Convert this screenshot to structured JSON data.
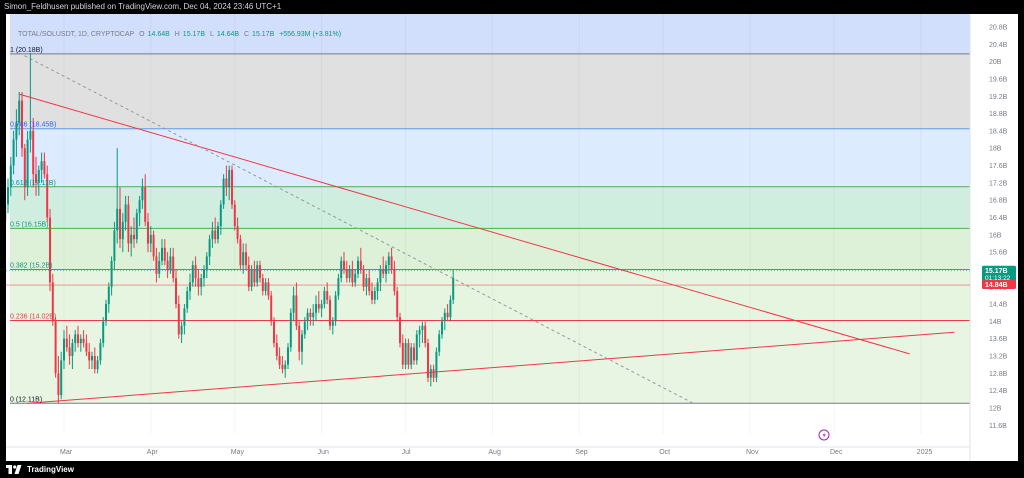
{
  "publish_line": "Simon_Feldhusen published on TradingView.com, Dec 04, 2024 23:46 UTC+1",
  "legend": {
    "symbol": "TOTAL/SOLUSDT, 1D, CRYPTOCAP",
    "o_label": "O",
    "o_value": "14.64B",
    "h_label": "H",
    "h_value": "15.17B",
    "l_label": "L",
    "l_value": "14.64B",
    "c_label": "C",
    "c_value": "15.17B",
    "change": "+556.93M (+3.81%)"
  },
  "branding": "TradingView",
  "colors": {
    "up": "#089981",
    "down": "#f23645",
    "bg": "#ffffff",
    "axis_text": "#787b86"
  },
  "chart_data": {
    "type": "candlestick",
    "y_axis_ticks": [
      "20.8B",
      "20.4B",
      "20B",
      "19.6B",
      "19.2B",
      "18.8B",
      "18.4B",
      "18B",
      "17.6B",
      "17.2B",
      "16.8B",
      "16.4B",
      "16B",
      "15.6B",
      "15.2B",
      "14.8B",
      "14.4B",
      "14B",
      "13.6B",
      "13.2B",
      "12.8B",
      "12.4B",
      "12B",
      "11.6B"
    ],
    "y_tick_values": [
      20.8,
      20.4,
      20,
      19.6,
      19.2,
      18.8,
      18.4,
      18,
      17.6,
      17.2,
      16.8,
      16.4,
      16,
      15.6,
      15.2,
      14.8,
      14.4,
      14,
      13.6,
      13.2,
      12.8,
      12.4,
      12,
      11.6
    ],
    "x_axis_ticks": [
      "Mar",
      "Apr",
      "May",
      "Jun",
      "Jul",
      "Aug",
      "Sep",
      "Oct",
      "Nov",
      "Dec",
      "2025"
    ],
    "x_tick_days": [
      0,
      31,
      61,
      92,
      122,
      153,
      184,
      214,
      245,
      275,
      306
    ],
    "ylim": [
      11.4,
      21.1
    ],
    "price_labels": [
      {
        "text": "15.17B",
        "sub": "01:13:22",
        "value": 15.17,
        "color": "#089981"
      },
      {
        "text": "14.84B",
        "value": 14.84,
        "color": "#f23645"
      }
    ],
    "fib_levels": [
      {
        "label": "1 (20.18B)",
        "value": 20.18,
        "line": "#787b86",
        "fill": "#e0e0e0",
        "text_color": "#131722"
      },
      {
        "label": "0.786 (18.45B)",
        "value": 18.45,
        "line": "#5b9cf6",
        "fill": "#dcebfd",
        "text_color": "#2962ff"
      },
      {
        "label": "0.618 (17.11B)",
        "value": 17.11,
        "line": "#4caf50",
        "fill": "#cfeee0",
        "text_color": "#089981"
      },
      {
        "label": "0.5 (16.15B)",
        "value": 16.15,
        "line": "#4caf50",
        "fill": "#ddf0d8",
        "text_color": "#089981"
      },
      {
        "label": "0.382 (15.2B)",
        "value": 15.2,
        "line": "#26a69a",
        "fill": "#e6f5e0",
        "text_color": "#089981"
      },
      {
        "label": "0.236 (14.02B)",
        "value": 14.02,
        "line": "#f23645",
        "fill": "#e8f5e2",
        "text_color": "#f23645"
      },
      {
        "label": "0 (12.11B)",
        "value": 12.11,
        "line": "#787b86",
        "fill": "#f9cfd1",
        "text_color": "#131722"
      }
    ],
    "fib_top_extension": {
      "value": 21.1,
      "fill": "#d1dffd"
    },
    "trendlines": [
      {
        "from_day": -16,
        "from_value": 19.25,
        "to_day": 302,
        "to_value": 13.25,
        "color": "#f23645",
        "style": "solid"
      },
      {
        "from_day": -13,
        "from_value": 12.11,
        "to_day": 318,
        "to_value": 13.75,
        "color": "#f23645",
        "style": "solid"
      },
      {
        "from_day": -16,
        "from_value": 20.2,
        "to_day": 225,
        "to_value": 12.1,
        "color": "#9598a1",
        "style": "dashed"
      }
    ],
    "candles": [
      [
        -21,
        16.3,
        16.9,
        16.1,
        16.7
      ],
      [
        -20,
        16.7,
        17.3,
        16.5,
        17.1
      ],
      [
        -19,
        17.1,
        17.8,
        16.9,
        17.6
      ],
      [
        -18,
        17.6,
        18.4,
        17.4,
        18.2
      ],
      [
        -17,
        18.2,
        18.9,
        17.8,
        18.6
      ],
      [
        -16,
        18.6,
        19.3,
        18.3,
        19.1
      ],
      [
        -15,
        19.1,
        19.3,
        17.8,
        18.0
      ],
      [
        -14,
        18.0,
        18.1,
        16.8,
        17.1
      ],
      [
        -13,
        17.1,
        18.4,
        16.9,
        18.2
      ],
      [
        -12,
        18.2,
        20.2,
        17.9,
        18.4
      ],
      [
        -11,
        18.4,
        18.7,
        17.1,
        17.4
      ],
      [
        -10,
        17.4,
        17.8,
        16.9,
        17.2
      ],
      [
        -9,
        17.2,
        17.6,
        16.9,
        17.5
      ],
      [
        -8,
        17.5,
        17.9,
        17.2,
        17.7
      ],
      [
        -7,
        17.7,
        17.9,
        17.3,
        17.4
      ],
      [
        -6,
        17.4,
        17.6,
        16.3,
        16.4
      ],
      [
        -5,
        16.4,
        16.6,
        14.7,
        14.9
      ],
      [
        -4,
        14.9,
        15.1,
        13.9,
        14.0
      ],
      [
        -3,
        14.0,
        14.1,
        12.7,
        12.8
      ],
      [
        -2,
        12.8,
        13.2,
        12.11,
        12.3
      ],
      [
        -1,
        12.3,
        13.3,
        12.2,
        13.1
      ],
      [
        0,
        13.1,
        13.8,
        12.9,
        13.6
      ],
      [
        1,
        13.6,
        13.9,
        13.3,
        13.4
      ],
      [
        2,
        13.4,
        13.7,
        13.0,
        13.2
      ],
      [
        3,
        13.2,
        13.6,
        12.9,
        13.5
      ],
      [
        4,
        13.5,
        13.8,
        13.3,
        13.7
      ],
      [
        5,
        13.7,
        13.9,
        13.4,
        13.5
      ],
      [
        6,
        13.5,
        13.7,
        13.3,
        13.6
      ],
      [
        7,
        13.6,
        13.8,
        13.4,
        13.5
      ],
      [
        8,
        13.5,
        13.7,
        13.2,
        13.3
      ],
      [
        9,
        13.3,
        13.5,
        12.9,
        13.1
      ],
      [
        10,
        13.1,
        13.3,
        12.9,
        13.2
      ],
      [
        11,
        13.2,
        13.4,
        12.8,
        12.9
      ],
      [
        12,
        12.9,
        13.2,
        12.8,
        13.1
      ],
      [
        13,
        13.1,
        13.6,
        13.0,
        13.5
      ],
      [
        14,
        13.5,
        14.1,
        13.4,
        14.0
      ],
      [
        15,
        14.0,
        14.5,
        13.9,
        14.4
      ],
      [
        16,
        14.4,
        14.9,
        14.2,
        14.8
      ],
      [
        17,
        14.8,
        15.5,
        14.6,
        15.4
      ],
      [
        18,
        15.4,
        16.3,
        15.2,
        16.1
      ],
      [
        19,
        16.1,
        18.0,
        15.8,
        16.6
      ],
      [
        20,
        16.6,
        17.1,
        15.7,
        15.9
      ],
      [
        21,
        15.9,
        16.5,
        15.6,
        16.3
      ],
      [
        22,
        16.3,
        16.9,
        16.1,
        16.7
      ],
      [
        23,
        16.7,
        16.9,
        15.6,
        15.8
      ],
      [
        24,
        15.8,
        16.2,
        15.5,
        16.0
      ],
      [
        25,
        16.0,
        16.4,
        15.7,
        15.9
      ],
      [
        26,
        15.9,
        16.6,
        15.8,
        16.5
      ],
      [
        27,
        16.5,
        16.9,
        16.2,
        16.8
      ],
      [
        28,
        16.8,
        17.3,
        16.6,
        17.1
      ],
      [
        29,
        17.1,
        17.4,
        16.2,
        16.3
      ],
      [
        30,
        16.3,
        16.5,
        15.6,
        15.8
      ],
      [
        31,
        15.8,
        16.2,
        15.6,
        16.0
      ],
      [
        32,
        16.0,
        16.1,
        15.4,
        15.5
      ],
      [
        33,
        15.5,
        15.7,
        14.9,
        15.1
      ],
      [
        34,
        15.1,
        15.6,
        15.0,
        15.4
      ],
      [
        35,
        15.4,
        15.9,
        15.3,
        15.7
      ],
      [
        36,
        15.7,
        15.9,
        15.3,
        15.4
      ],
      [
        37,
        15.4,
        15.6,
        15.0,
        15.2
      ],
      [
        38,
        15.2,
        15.7,
        15.1,
        15.5
      ],
      [
        39,
        15.5,
        15.7,
        14.9,
        15.0
      ],
      [
        40,
        15.0,
        15.2,
        14.3,
        14.4
      ],
      [
        41,
        14.4,
        14.6,
        13.6,
        13.7
      ],
      [
        42,
        13.7,
        14.0,
        13.5,
        13.9
      ],
      [
        43,
        13.9,
        14.4,
        13.7,
        14.3
      ],
      [
        44,
        14.3,
        14.8,
        14.2,
        14.7
      ],
      [
        45,
        14.7,
        15.1,
        14.5,
        14.9
      ],
      [
        46,
        14.9,
        15.4,
        14.8,
        15.3
      ],
      [
        47,
        15.3,
        15.5,
        14.8,
        15.0
      ],
      [
        48,
        15.0,
        15.2,
        14.6,
        14.8
      ],
      [
        49,
        14.8,
        15.1,
        14.6,
        15.0
      ],
      [
        50,
        15.0,
        15.3,
        14.8,
        15.2
      ],
      [
        51,
        15.2,
        15.6,
        15.0,
        15.5
      ],
      [
        52,
        15.5,
        16.0,
        15.3,
        15.9
      ],
      [
        53,
        15.9,
        16.3,
        15.7,
        16.1
      ],
      [
        54,
        16.1,
        16.4,
        15.8,
        15.9
      ],
      [
        55,
        15.9,
        16.3,
        15.8,
        16.2
      ],
      [
        56,
        16.2,
        16.8,
        16.0,
        16.7
      ],
      [
        57,
        16.7,
        17.4,
        16.6,
        17.3
      ],
      [
        58,
        17.3,
        17.6,
        16.9,
        17.1
      ],
      [
        59,
        17.1,
        17.6,
        16.8,
        17.5
      ],
      [
        60,
        17.5,
        17.6,
        16.6,
        16.7
      ],
      [
        61,
        16.7,
        16.8,
        16.1,
        16.2
      ],
      [
        62,
        16.2,
        16.4,
        15.8,
        15.9
      ],
      [
        63,
        15.9,
        16.0,
        15.2,
        15.3
      ],
      [
        64,
        15.3,
        15.8,
        15.1,
        15.6
      ],
      [
        65,
        15.6,
        15.8,
        15.2,
        15.3
      ],
      [
        66,
        15.3,
        15.5,
        14.7,
        14.8
      ],
      [
        67,
        14.8,
        15.3,
        14.7,
        15.2
      ],
      [
        68,
        15.2,
        15.4,
        14.8,
        14.9
      ],
      [
        69,
        14.9,
        15.4,
        14.8,
        15.3
      ],
      [
        70,
        15.3,
        15.4,
        14.9,
        15.0
      ],
      [
        71,
        15.0,
        15.1,
        14.6,
        14.7
      ],
      [
        72,
        14.7,
        15.0,
        14.6,
        14.9
      ],
      [
        73,
        14.9,
        15.0,
        14.5,
        14.6
      ],
      [
        74,
        14.6,
        14.7,
        13.9,
        14.0
      ],
      [
        75,
        14.0,
        14.1,
        13.4,
        13.5
      ],
      [
        76,
        13.5,
        13.7,
        13.1,
        13.2
      ],
      [
        77,
        13.2,
        13.4,
        12.9,
        13.0
      ],
      [
        78,
        13.0,
        13.2,
        12.8,
        12.9
      ],
      [
        79,
        12.9,
        13.1,
        12.7,
        13.0
      ],
      [
        80,
        13.0,
        13.5,
        12.9,
        13.4
      ],
      [
        81,
        13.4,
        14.3,
        13.3,
        14.2
      ],
      [
        82,
        14.2,
        14.8,
        14.0,
        14.6
      ],
      [
        83,
        14.6,
        14.9,
        13.8,
        13.9
      ],
      [
        84,
        13.9,
        14.0,
        13.1,
        13.3
      ],
      [
        85,
        13.3,
        13.8,
        13.0,
        13.7
      ],
      [
        86,
        13.7,
        14.1,
        13.6,
        14.0
      ],
      [
        87,
        14.0,
        14.3,
        13.8,
        14.2
      ],
      [
        88,
        14.2,
        14.3,
        13.9,
        14.1
      ],
      [
        89,
        14.1,
        14.4,
        13.9,
        14.2
      ],
      [
        90,
        14.2,
        14.6,
        14.0,
        14.4
      ],
      [
        91,
        14.4,
        14.7,
        14.2,
        14.3
      ],
      [
        92,
        14.3,
        14.5,
        14.1,
        14.4
      ],
      [
        93,
        14.4,
        14.8,
        14.3,
        14.7
      ],
      [
        94,
        14.7,
        14.9,
        14.4,
        14.5
      ],
      [
        95,
        14.5,
        14.6,
        13.8,
        13.9
      ],
      [
        96,
        13.9,
        14.1,
        13.7,
        14.0
      ],
      [
        97,
        14.0,
        14.7,
        13.9,
        14.6
      ],
      [
        98,
        14.6,
        15.1,
        14.5,
        15.0
      ],
      [
        99,
        15.0,
        15.5,
        14.9,
        15.4
      ],
      [
        100,
        15.4,
        15.6,
        15.1,
        15.2
      ],
      [
        101,
        15.2,
        15.4,
        14.9,
        15.0
      ],
      [
        102,
        15.0,
        15.3,
        14.9,
        15.2
      ],
      [
        103,
        15.2,
        15.4,
        14.8,
        14.9
      ],
      [
        104,
        14.9,
        15.2,
        14.8,
        15.1
      ],
      [
        105,
        15.1,
        15.5,
        15.0,
        15.4
      ],
      [
        106,
        15.4,
        15.7,
        15.1,
        15.2
      ],
      [
        107,
        15.2,
        15.3,
        14.7,
        14.8
      ],
      [
        108,
        14.8,
        15.1,
        14.6,
        15.0
      ],
      [
        109,
        15.0,
        15.2,
        14.6,
        14.7
      ],
      [
        110,
        14.7,
        14.9,
        14.4,
        14.5
      ],
      [
        111,
        14.5,
        14.8,
        14.4,
        14.7
      ],
      [
        112,
        14.7,
        15.0,
        14.5,
        14.9
      ],
      [
        113,
        14.9,
        15.3,
        14.7,
        15.2
      ],
      [
        114,
        15.2,
        15.5,
        15.0,
        15.1
      ],
      [
        115,
        15.1,
        15.4,
        14.9,
        15.3
      ],
      [
        116,
        15.3,
        15.6,
        15.1,
        15.5
      ],
      [
        117,
        15.5,
        15.7,
        15.1,
        15.2
      ],
      [
        118,
        15.2,
        15.4,
        14.6,
        14.7
      ],
      [
        119,
        14.7,
        14.8,
        14.0,
        14.1
      ],
      [
        120,
        14.1,
        14.2,
        13.4,
        13.5
      ],
      [
        121,
        13.5,
        13.7,
        12.9,
        13.0
      ],
      [
        122,
        13.0,
        13.6,
        12.9,
        13.5
      ],
      [
        123,
        13.5,
        13.6,
        12.9,
        13.0
      ],
      [
        124,
        13.0,
        13.5,
        12.9,
        13.4
      ],
      [
        125,
        13.4,
        13.5,
        13.0,
        13.1
      ],
      [
        126,
        13.1,
        13.8,
        13.0,
        13.7
      ],
      [
        127,
        13.7,
        13.9,
        13.4,
        13.8
      ],
      [
        128,
        13.8,
        14.0,
        13.5,
        13.9
      ],
      [
        129,
        13.9,
        14.0,
        13.4,
        13.5
      ],
      [
        130,
        13.5,
        13.6,
        12.6,
        12.7
      ],
      [
        131,
        12.7,
        13.0,
        12.5,
        12.9
      ],
      [
        132,
        12.9,
        13.0,
        12.6,
        12.7
      ],
      [
        133,
        12.7,
        13.4,
        12.6,
        13.3
      ],
      [
        134,
        13.3,
        13.8,
        13.2,
        13.7
      ],
      [
        135,
        13.7,
        14.1,
        13.6,
        14.0
      ],
      [
        136,
        14.0,
        14.3,
        13.8,
        14.2
      ],
      [
        137,
        14.2,
        14.4,
        14.0,
        14.1
      ],
      [
        138,
        14.1,
        14.6,
        14.0,
        14.5
      ],
      [
        139,
        14.5,
        15.2,
        14.4,
        15.0
      ]
    ]
  }
}
